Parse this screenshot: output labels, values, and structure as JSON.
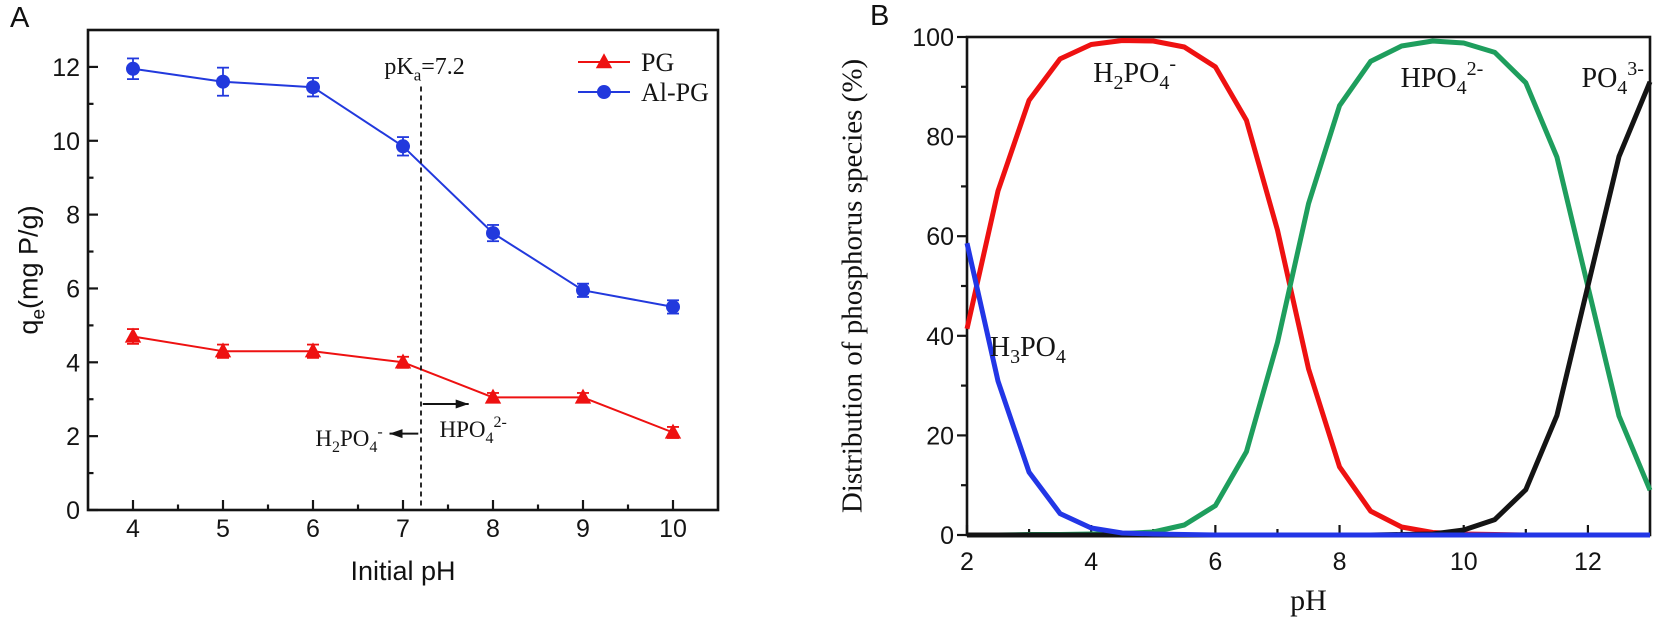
{
  "figure": {
    "background": "#ffffff",
    "frame_color": "#141414"
  },
  "chart_data": [
    {
      "id": "a",
      "panel_label": "A",
      "type": "line",
      "xlabel": "Initial pH",
      "ylabel_parts": [
        [
          "q",
          ""
        ],
        [
          "e",
          "sub"
        ],
        [
          "(mg P/g)",
          ""
        ]
      ],
      "xlim": [
        3.5,
        10.5
      ],
      "ylim": [
        0,
        13
      ],
      "xticks": [
        4,
        5,
        6,
        7,
        8,
        9,
        10
      ],
      "yticks": [
        0,
        2,
        4,
        6,
        8,
        10,
        12
      ],
      "x_minor_step": 0.5,
      "y_minor_step": 1,
      "grid": false,
      "legend_position": "top-right-inside",
      "x": [
        4,
        5,
        6,
        7,
        8,
        9,
        10
      ],
      "series": [
        {
          "name": "PG",
          "color": "#ee1111",
          "marker": "triangle",
          "values": [
            4.7,
            4.3,
            4.3,
            4.0,
            3.05,
            3.05,
            2.1
          ],
          "errors": [
            0.2,
            0.18,
            0.18,
            0.15,
            0.12,
            0.12,
            0.15
          ]
        },
        {
          "name": "Al-PG",
          "color": "#2239dd",
          "marker": "circle",
          "values": [
            11.95,
            11.6,
            11.45,
            9.85,
            7.5,
            5.95,
            5.5
          ],
          "errors": [
            0.28,
            0.38,
            0.25,
            0.25,
            0.22,
            0.18,
            0.18
          ]
        }
      ],
      "annotations": {
        "pka_line": {
          "x": 7.2,
          "y_top": 11.47,
          "label_parts": [
            [
              "pK",
              ""
            ],
            [
              "a",
              "sub"
            ],
            [
              "=7.2",
              ""
            ]
          ],
          "label_x": 7.24,
          "label_y": 12.05
        },
        "species_left": {
          "parts": [
            [
              "H",
              ""
            ],
            [
              "2",
              "sub"
            ],
            [
              "PO",
              ""
            ],
            [
              "4",
              "sub"
            ],
            [
              "-",
              "sup"
            ]
          ],
          "text_x": 6.4,
          "text_y": 1.95,
          "arrow_y": 2.07,
          "arrow_x1": 7.17,
          "arrow_x2": 6.85
        },
        "species_right": {
          "parts": [
            [
              "HPO",
              ""
            ],
            [
              "4",
              "sub"
            ],
            [
              "2-",
              "sup"
            ]
          ],
          "text_x": 7.78,
          "text_y": 2.2,
          "arrow_y": 2.87,
          "arrow_x1": 7.22,
          "arrow_x2": 7.73
        }
      }
    },
    {
      "id": "b",
      "panel_label": "B",
      "type": "line",
      "xlabel": "pH",
      "ylabel": "Distribution of phosphorus species (%)",
      "xlim": [
        2,
        13
      ],
      "ylim": [
        0,
        100
      ],
      "xticks": [
        2,
        4,
        6,
        8,
        10,
        12
      ],
      "yticks": [
        0,
        20,
        40,
        60,
        80,
        100
      ],
      "x_minor_step": 1,
      "y_minor_step": 10,
      "grid": false,
      "x": [
        2,
        2.5,
        3,
        3.5,
        4,
        4.5,
        5,
        5.5,
        6,
        6.5,
        7,
        7.5,
        8,
        8.5,
        9,
        9.5,
        10,
        10.5,
        11,
        11.5,
        12,
        12.5,
        13
      ],
      "series": [
        {
          "name": "H2PO4-",
          "label_parts": [
            [
              "H",
              ""
            ],
            [
              "2",
              "sub"
            ],
            [
              "PO",
              ""
            ],
            [
              "4",
              "sub"
            ],
            [
              "-",
              "sup"
            ]
          ],
          "color": "#ee1111",
          "values": [
            41.4,
            69.1,
            87.3,
            95.6,
            98.5,
            99.3,
            99.2,
            98.0,
            94.0,
            83.3,
            61.2,
            33.4,
            13.7,
            4.8,
            1.6,
            0.5,
            0.2,
            0.1,
            0,
            0,
            0,
            0,
            0
          ],
          "label_x": 4.7,
          "label_y": 93
        },
        {
          "name": "HPO4 2-",
          "label_parts": [
            [
              "HPO",
              ""
            ],
            [
              "4",
              "sub"
            ],
            [
              "2-",
              "sup"
            ]
          ],
          "color": "#1e9e5d",
          "values": [
            0,
            0,
            0.1,
            0.1,
            0.2,
            0.3,
            0.6,
            2.0,
            5.9,
            16.7,
            38.7,
            66.5,
            86.2,
            95.1,
            98.2,
            99.2,
            98.8,
            96.9,
            90.8,
            75.9,
            49.9,
            23.9,
            9.0
          ],
          "label_x": 9.65,
          "label_y": 92
        },
        {
          "name": "PO4 3-",
          "label_parts": [
            [
              "PO",
              ""
            ],
            [
              "4",
              "sub"
            ],
            [
              "3-",
              "sup"
            ]
          ],
          "color": "#141414",
          "values": [
            0,
            0,
            0,
            0,
            0,
            0,
            0,
            0,
            0,
            0,
            0,
            0,
            0,
            0,
            0.1,
            0.2,
            1.0,
            3.1,
            9.1,
            24.0,
            50.0,
            76.0,
            91.0
          ],
          "label_x": 12.4,
          "label_y": 92
        },
        {
          "name": "H3PO4",
          "label_parts": [
            [
              "H",
              ""
            ],
            [
              "3",
              "sub"
            ],
            [
              "PO",
              ""
            ],
            [
              "4",
              "sub"
            ]
          ],
          "color": "#2236e6",
          "values": [
            58.6,
            30.9,
            12.6,
            4.3,
            1.4,
            0.4,
            0.2,
            0.1,
            0,
            0,
            0,
            0,
            0,
            0,
            0,
            0,
            0,
            0,
            0,
            0,
            0,
            0,
            0
          ],
          "label_x": 2.98,
          "label_y": 38
        }
      ]
    }
  ]
}
